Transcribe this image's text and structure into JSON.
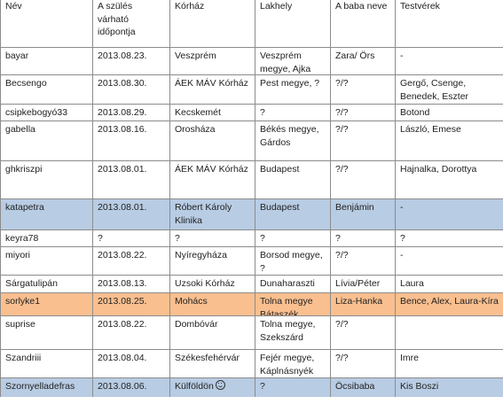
{
  "headers": [
    "Név",
    "A szülés várható időpontja",
    "Kórház",
    "Lakhely",
    "A baba neve",
    "Testvérek"
  ],
  "rows": [
    {
      "nev": "bayar",
      "datum": "2013.08.23.",
      "korhaz": "Veszprém",
      "lakhely": "Veszprém megye, Ajka",
      "baba": "Zara/ Örs",
      "testverek": "-",
      "highlight": ""
    },
    {
      "nev": "Becsengo",
      "datum": "2013.08.30.",
      "korhaz": "ÁEK MÁV Kórház",
      "lakhely": "Pest megye, ?",
      "baba": "?/?",
      "testverek": "Gergő, Csenge, Benedek, Eszter",
      "highlight": ""
    },
    {
      "nev": "csipkebogyó33",
      "datum": "2013.08.29.",
      "korhaz": "Kecskemét",
      "lakhely": "?",
      "baba": "?/?",
      "testverek": "Botond",
      "highlight": ""
    },
    {
      "nev": "gabella",
      "datum": "2013.08.16.",
      "korhaz": "Orosháza",
      "lakhely": "Békés megye, Gárdos",
      "baba": "?/?",
      "testverek": "László, Emese",
      "highlight": ""
    },
    {
      "nev": "ghkriszpi",
      "datum": "2013.08.01.",
      "korhaz": "ÁEK MÁV Kórház",
      "lakhely": "Budapest",
      "baba": "?/?",
      "testverek": "Hajnalka, Dorottya",
      "highlight": ""
    },
    {
      "nev": "katapetra",
      "datum": "2013.08.01.",
      "korhaz": "Róbert Károly Klinika",
      "lakhely": "Budapest",
      "baba": "Benjámin",
      "testverek": "-",
      "highlight": "blue"
    },
    {
      "nev": "keyra78",
      "datum": "?",
      "korhaz": "?",
      "lakhely": "?",
      "baba": "?",
      "testverek": "?",
      "highlight": ""
    },
    {
      "nev": "miyori",
      "datum": "2013.08.22.",
      "korhaz": "Nyíregyháza",
      "lakhely": "Borsod megye, ?",
      "baba": "?/?",
      "testverek": "-",
      "highlight": ""
    },
    {
      "nev": "Sárgatulipán",
      "datum": "2013.08.13.",
      "korhaz": "Uzsoki Kórház",
      "lakhely": "Dunaharaszti",
      "baba": "Lívia/Péter",
      "testverek": "Laura",
      "highlight": ""
    },
    {
      "nev": "sorlyke1",
      "datum": "2013.08.25.",
      "korhaz": "Mohács",
      "lakhely": "Tolna megye Bátaszék",
      "baba": "Liza-Hanka",
      "testverek": "Bence, Alex, Laura-Kíra",
      "highlight": "orange"
    },
    {
      "nev": "suprise",
      "datum": "2013.08.22.",
      "korhaz": "Dombóvár",
      "lakhely": "Tolna megye, Szekszárd",
      "baba": "?/?",
      "testverek": "",
      "highlight": ""
    },
    {
      "nev": "Szandriii",
      "datum": "2013.08.04.",
      "korhaz": "Székesfehérvár",
      "lakhely": "Fejér megye, Káplnásnyék",
      "baba": "?/?",
      "testverek": "Imre",
      "highlight": ""
    },
    {
      "nev": "Szornyelladefras",
      "datum": "2013.08.06.",
      "korhaz": "Külföldön",
      "korhaz_icon": "smiley-icon",
      "lakhely": "?",
      "baba": "Öcsibaba",
      "testverek": "Kis Boszi",
      "highlight": "blue"
    }
  ]
}
